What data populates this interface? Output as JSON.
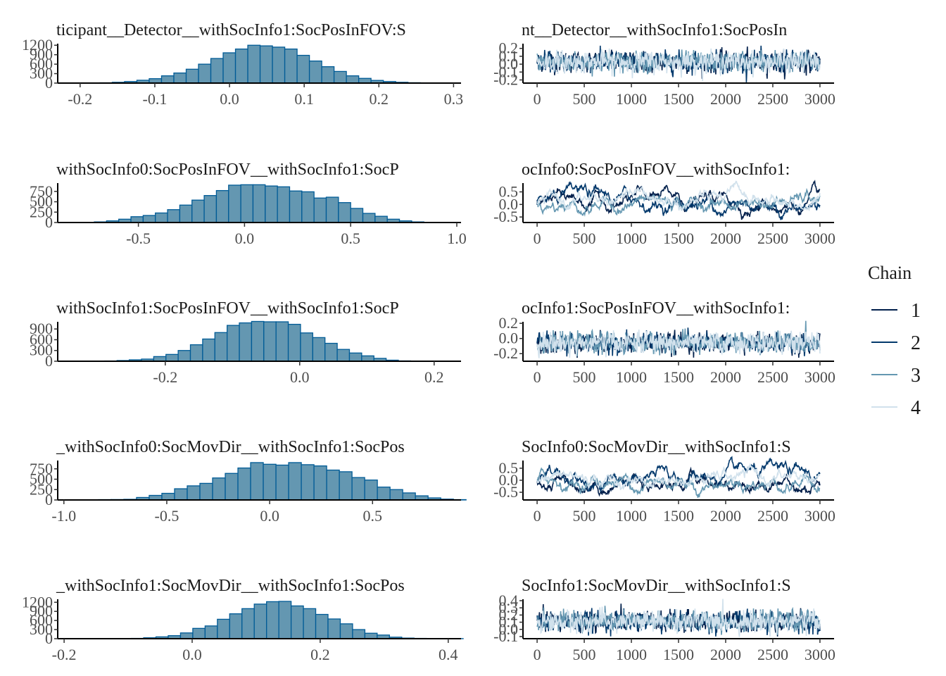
{
  "chart_data": {
    "type": "mcmc-diagnostics",
    "layout": "5 rows x 2 columns (histogram | trace)",
    "legend": {
      "title": "Chain",
      "position": "right",
      "entries": [
        {
          "label": "1",
          "color": "#011f4b"
        },
        {
          "label": "2",
          "color": "#03396c"
        },
        {
          "label": "3",
          "color": "#6497b1"
        },
        {
          "label": "4",
          "color": "#d1e1ec"
        }
      ]
    },
    "histogram_style": {
      "fill": "#6497b1",
      "stroke": "#005b96"
    },
    "rows": [
      {
        "hist": {
          "title": "ticipant__Detector__withSocInfo1:SocPosInFOV:S",
          "type": "bar",
          "xlim": [
            -0.23,
            0.31
          ],
          "xticks": [
            -0.2,
            -0.1,
            0.0,
            0.1,
            0.2,
            0.3
          ],
          "xtick_labels": [
            "-0.2",
            "-0.1",
            "0.0",
            "0.1",
            "0.2",
            "0.3"
          ],
          "ylim": [
            0,
            1250
          ],
          "yticks": [
            0,
            300,
            600,
            900,
            1200
          ],
          "ytick_labels": [
            "0",
            "300",
            "600",
            "900",
            "1200"
          ],
          "bin_width": 0.0165,
          "bins_start": -0.19,
          "counts": [
            5,
            10,
            25,
            50,
            90,
            140,
            230,
            320,
            440,
            600,
            780,
            960,
            1080,
            1200,
            1180,
            1140,
            1080,
            880,
            700,
            520,
            370,
            230,
            150,
            85,
            50,
            25,
            12,
            5
          ]
        },
        "trace": {
          "title": "nt__Detector__withSocInfo1:SocPosIn",
          "type": "line",
          "xlim": [
            -150,
            3150
          ],
          "xticks": [
            0,
            500,
            1000,
            1500,
            2000,
            2500,
            3000
          ],
          "xtick_labels": [
            "0",
            "500",
            "1000",
            "1500",
            "2000",
            "2500",
            "3000"
          ],
          "ylim": [
            -0.24,
            0.26
          ],
          "yticks": [
            -0.2,
            -0.1,
            0.0,
            0.1,
            0.2
          ],
          "ytick_labels": [
            "-0.2",
            "-0.1",
            "0.0",
            "0.1",
            "0.2"
          ],
          "center": 0.03,
          "spread": 0.065,
          "autocorr": 0.2,
          "iterations": 3000
        }
      },
      {
        "hist": {
          "title": "withSocInfo0:SocPosInFOV__withSocInfo1:SocP",
          "type": "bar",
          "xlim": [
            -0.88,
            1.02
          ],
          "xticks": [
            -0.5,
            0.0,
            0.5,
            1.0
          ],
          "xtick_labels": [
            "-0.5",
            "0.0",
            "0.5",
            "1.0"
          ],
          "ylim": [
            0,
            950
          ],
          "yticks": [
            0,
            250,
            500,
            750
          ],
          "ytick_labels": [
            "0",
            "250",
            "500",
            "750"
          ],
          "bin_width": 0.0575,
          "bins_start": -0.765,
          "counts": [
            5,
            15,
            40,
            80,
            140,
            170,
            230,
            310,
            420,
            540,
            650,
            770,
            900,
            910,
            910,
            880,
            860,
            760,
            740,
            590,
            610,
            480,
            340,
            220,
            150,
            80,
            40,
            15,
            5
          ]
        },
        "trace": {
          "title": "ocInfo0:SocPosInFOV__withSocInfo1:",
          "type": "line",
          "xlim": [
            -150,
            3150
          ],
          "xticks": [
            0,
            500,
            1000,
            1500,
            2000,
            2500,
            3000
          ],
          "xtick_labels": [
            "0",
            "500",
            "1000",
            "1500",
            "2000",
            "2500",
            "3000"
          ],
          "ylim": [
            -0.72,
            0.85
          ],
          "yticks": [
            -0.5,
            0.0,
            0.5
          ],
          "ytick_labels": [
            "-0.5",
            "0.0",
            "0.5"
          ],
          "center": 0.08,
          "spread": 0.27,
          "autocorr": 0.97,
          "iterations": 3000
        }
      },
      {
        "hist": {
          "title": "withSocInfo1:SocPosInFOV__withSocInfo1:SocP",
          "type": "bar",
          "xlim": [
            -0.36,
            0.24
          ],
          "xticks": [
            -0.2,
            0.0,
            0.2
          ],
          "xtick_labels": [
            "-0.2",
            "0.0",
            "0.2"
          ],
          "ylim": [
            0,
            1100
          ],
          "yticks": [
            0,
            300,
            600,
            900
          ],
          "ytick_labels": [
            "0",
            "300",
            "600",
            "900"
          ],
          "bin_width": 0.0182,
          "bins_start": -0.29,
          "counts": [
            8,
            20,
            40,
            60,
            130,
            190,
            300,
            460,
            620,
            800,
            1000,
            1070,
            1110,
            1100,
            1100,
            1030,
            790,
            660,
            500,
            330,
            230,
            150,
            80,
            30,
            10,
            5
          ]
        },
        "trace": {
          "title": "ocInfo1:SocPosInFOV__withSocInfo1:",
          "type": "line",
          "xlim": [
            -150,
            3150
          ],
          "xticks": [
            0,
            500,
            1000,
            1500,
            2000,
            2500,
            3000
          ],
          "xtick_labels": [
            "0",
            "500",
            "1000",
            "1500",
            "2000",
            "2500",
            "3000"
          ],
          "ylim": [
            -0.3,
            0.22
          ],
          "yticks": [
            -0.2,
            0.0,
            0.2
          ],
          "ytick_labels": [
            "-0.2",
            "0.0",
            "0.2"
          ],
          "center": -0.06,
          "spread": 0.065,
          "autocorr": 0.2,
          "iterations": 3000
        }
      },
      {
        "hist": {
          "title": "_withSocInfo0:SocMovDir__withSocInfo1:SocPos",
          "type": "bar",
          "xlim": [
            -1.03,
            0.93
          ],
          "xticks": [
            -1.0,
            -0.5,
            0.0,
            0.5
          ],
          "xtick_labels": [
            "-1.0",
            "-0.5",
            "0.0",
            "0.5"
          ],
          "ylim": [
            0,
            950
          ],
          "yticks": [
            0,
            250,
            500,
            750
          ],
          "ytick_labels": [
            "0",
            "250",
            "500",
            "750"
          ],
          "bin_width": 0.0616,
          "bins_start": -0.955,
          "counts": [
            3,
            5,
            8,
            10,
            15,
            60,
            110,
            160,
            270,
            340,
            400,
            530,
            640,
            770,
            900,
            860,
            840,
            900,
            850,
            820,
            720,
            680,
            540,
            480,
            310,
            250,
            170,
            100,
            50,
            20,
            8
          ]
        },
        "trace": {
          "title": "SocInfo0:SocMovDir__withSocInfo1:S",
          "type": "line",
          "xlim": [
            -150,
            3150
          ],
          "xticks": [
            0,
            500,
            1000,
            1500,
            2000,
            2500,
            3000
          ],
          "xtick_labels": [
            "0",
            "500",
            "1000",
            "1500",
            "2000",
            "2500",
            "3000"
          ],
          "ylim": [
            -0.82,
            0.82
          ],
          "yticks": [
            -0.5,
            0.0,
            0.5
          ],
          "ytick_labels": [
            "-0.5",
            "0.0",
            "0.5"
          ],
          "center": 0.0,
          "spread": 0.28,
          "autocorr": 0.97,
          "iterations": 3000
        }
      },
      {
        "hist": {
          "title": "_withSocInfo1:SocMovDir__withSocInfo1:SocPos",
          "type": "bar",
          "xlim": [
            -0.21,
            0.42
          ],
          "xticks": [
            -0.2,
            0.0,
            0.2,
            0.4
          ],
          "xtick_labels": [
            "-0.2",
            "0.0",
            "0.2",
            "0.4"
          ],
          "ylim": [
            0,
            1300
          ],
          "yticks": [
            0,
            300,
            600,
            900,
            1200
          ],
          "ytick_labels": [
            "0",
            "300",
            "600",
            "900",
            "1200"
          ],
          "bin_width": 0.0192,
          "bins_start": -0.095,
          "counts": [
            10,
            30,
            60,
            100,
            190,
            340,
            420,
            640,
            820,
            990,
            1140,
            1220,
            1230,
            1080,
            990,
            800,
            650,
            490,
            300,
            180,
            120,
            50,
            20,
            10,
            5,
            3,
            2
          ]
        },
        "trace": {
          "title": "SocInfo1:SocMovDir__withSocInfo1:S",
          "type": "line",
          "xlim": [
            -150,
            3150
          ],
          "xticks": [
            0,
            500,
            1000,
            1500,
            2000,
            2500,
            3000
          ],
          "xtick_labels": [
            "0",
            "500",
            "1000",
            "1500",
            "2000",
            "2500",
            "3000"
          ],
          "ylim": [
            -0.13,
            0.42
          ],
          "yticks": [
            -0.1,
            0.0,
            0.1,
            0.2,
            0.3,
            0.4
          ],
          "ytick_labels": [
            "-0.1",
            "0.0",
            "0.1",
            "0.2",
            "0.3",
            "0.4"
          ],
          "center": 0.11,
          "spread": 0.07,
          "autocorr": 0.2,
          "iterations": 3000
        }
      }
    ]
  }
}
